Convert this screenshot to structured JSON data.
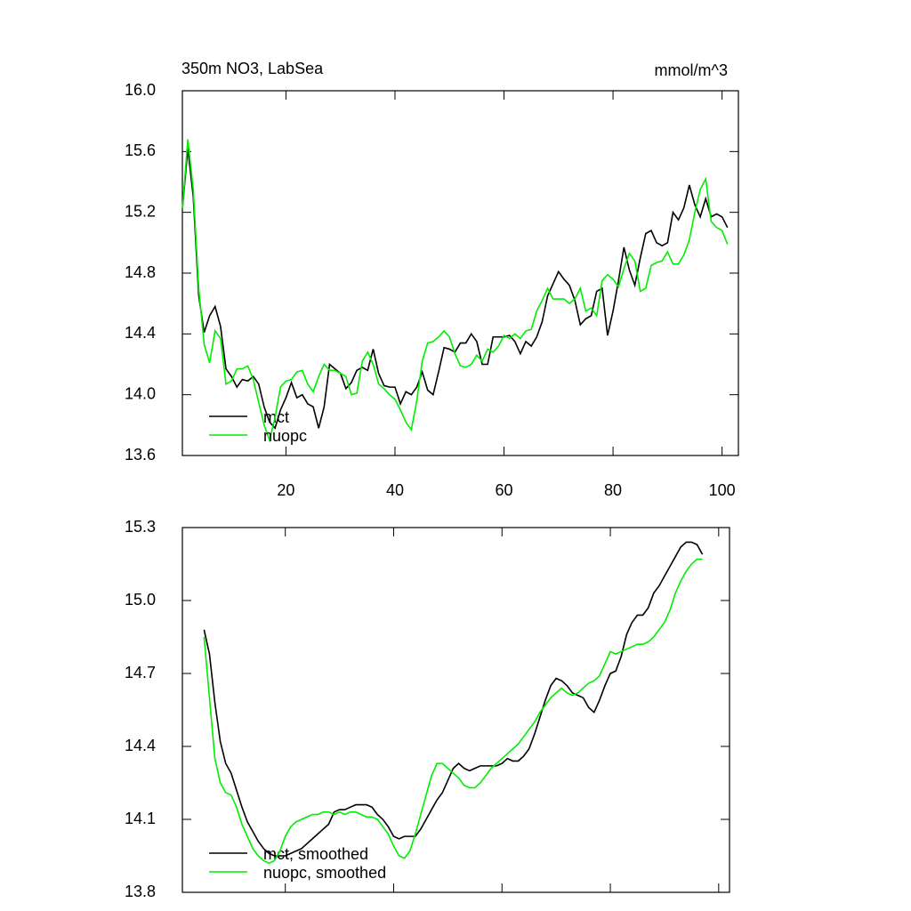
{
  "chart_data": [
    {
      "type": "line",
      "title": "350m NO3, LabSea",
      "units_label": "mmol/m^3",
      "x": [
        1,
        2,
        3,
        4,
        5,
        6,
        7,
        8,
        9,
        10,
        11,
        12,
        13,
        14,
        15,
        16,
        17,
        18,
        19,
        20,
        21,
        22,
        23,
        24,
        25,
        26,
        27,
        28,
        29,
        30,
        31,
        32,
        33,
        34,
        35,
        36,
        37,
        38,
        39,
        40,
        41,
        42,
        43,
        44,
        45,
        46,
        47,
        48,
        49,
        50,
        51,
        52,
        53,
        54,
        55,
        56,
        57,
        58,
        59,
        60,
        61,
        62,
        63,
        64,
        65,
        66,
        67,
        68,
        69,
        70,
        71,
        72,
        73,
        74,
        75,
        76,
        77,
        78,
        79,
        80,
        81,
        82,
        83,
        84,
        85,
        86,
        87,
        88,
        89,
        90,
        91,
        92,
        93,
        94,
        95,
        96,
        97,
        98,
        99,
        100,
        101
      ],
      "series": [
        {
          "name": "mct",
          "color": "#000000",
          "values": [
            15.22,
            15.62,
            15.3,
            14.65,
            14.41,
            14.52,
            14.58,
            14.45,
            14.17,
            14.12,
            14.05,
            14.1,
            14.09,
            14.12,
            14.07,
            13.92,
            13.82,
            13.78,
            13.9,
            13.98,
            14.08,
            13.98,
            14.0,
            13.94,
            13.92,
            13.78,
            13.92,
            14.2,
            14.17,
            14.14,
            14.04,
            14.08,
            14.16,
            14.18,
            14.16,
            14.3,
            14.14,
            14.06,
            14.05,
            14.05,
            13.94,
            14.02,
            14.0,
            14.05,
            14.15,
            14.03,
            14.0,
            14.15,
            14.31,
            14.3,
            14.28,
            14.34,
            14.34,
            14.4,
            14.35,
            14.2,
            14.2,
            14.38,
            14.38,
            14.38,
            14.39,
            14.35,
            14.27,
            14.35,
            14.32,
            14.38,
            14.48,
            14.65,
            14.73,
            14.81,
            14.76,
            14.72,
            14.62,
            14.46,
            14.5,
            14.52,
            14.68,
            14.7,
            14.39,
            14.55,
            14.75,
            14.97,
            14.82,
            14.72,
            14.9,
            15.06,
            15.08,
            15.0,
            14.98,
            15.0,
            15.2,
            15.15,
            15.23,
            15.38,
            15.25,
            15.17,
            15.29,
            15.17,
            15.19,
            15.17,
            15.1
          ]
        },
        {
          "name": "nuopc",
          "color": "#00ee00",
          "values": [
            15.22,
            15.68,
            15.35,
            14.7,
            14.33,
            14.21,
            14.42,
            14.37,
            14.07,
            14.09,
            14.17,
            14.17,
            14.19,
            14.1,
            13.95,
            13.8,
            13.7,
            13.85,
            14.05,
            14.09,
            14.1,
            14.15,
            14.16,
            14.07,
            14.02,
            14.12,
            14.2,
            14.16,
            14.16,
            14.14,
            14.12,
            14.0,
            14.01,
            14.22,
            14.28,
            14.2,
            14.07,
            14.04,
            14.0,
            13.97,
            13.9,
            13.82,
            13.77,
            13.96,
            14.22,
            14.34,
            14.35,
            14.38,
            14.42,
            14.38,
            14.27,
            14.19,
            14.18,
            14.2,
            14.26,
            14.22,
            14.3,
            14.28,
            14.32,
            14.39,
            14.37,
            14.4,
            14.37,
            14.42,
            14.43,
            14.55,
            14.62,
            14.7,
            14.63,
            14.63,
            14.63,
            14.6,
            14.63,
            14.7,
            14.55,
            14.57,
            14.52,
            14.75,
            14.79,
            14.76,
            14.71,
            14.83,
            14.93,
            14.88,
            14.68,
            14.7,
            14.85,
            14.87,
            14.88,
            14.94,
            14.86,
            14.86,
            14.92,
            15.02,
            15.2,
            15.35,
            15.42,
            15.14,
            15.1,
            15.08,
            14.99
          ]
        }
      ],
      "xlim": [
        1,
        103
      ],
      "xticks": [
        20,
        40,
        60,
        80,
        100
      ],
      "show_xtick_labels": true,
      "ylim": [
        13.6,
        16.0
      ],
      "yticks": [
        13.6,
        {
          "value": 14,
          "label": "14.0"
        },
        14.4,
        14.8,
        15.2,
        15.6,
        {
          "value": 16,
          "label": "16.0"
        }
      ],
      "legend": "lower left"
    },
    {
      "type": "line",
      "x": [
        5,
        6,
        7,
        8,
        9,
        10,
        11,
        12,
        13,
        14,
        15,
        16,
        17,
        18,
        19,
        20,
        21,
        22,
        23,
        24,
        25,
        26,
        27,
        28,
        29,
        30,
        31,
        32,
        33,
        34,
        35,
        36,
        37,
        38,
        39,
        40,
        41,
        42,
        43,
        44,
        45,
        46,
        47,
        48,
        49,
        50,
        51,
        52,
        53,
        54,
        55,
        56,
        57,
        58,
        59,
        60,
        61,
        62,
        63,
        64,
        65,
        66,
        67,
        68,
        69,
        70,
        71,
        72,
        73,
        74,
        75,
        76,
        77,
        78,
        79,
        80,
        81,
        82,
        83,
        84,
        85,
        86,
        87,
        88,
        89,
        90,
        91,
        92,
        93,
        94,
        95,
        96,
        97
      ],
      "series": [
        {
          "name": "mct, smoothed",
          "color": "#000000",
          "values": [
            14.88,
            14.78,
            14.58,
            14.42,
            14.33,
            14.29,
            14.22,
            14.15,
            14.09,
            14.05,
            14.01,
            13.98,
            13.96,
            13.95,
            13.95,
            13.95,
            13.96,
            13.97,
            13.98,
            14.0,
            14.02,
            14.04,
            14.06,
            14.08,
            14.13,
            14.14,
            14.14,
            14.15,
            14.16,
            14.16,
            14.16,
            14.15,
            14.12,
            14.1,
            14.07,
            14.03,
            14.02,
            14.03,
            14.03,
            14.03,
            14.06,
            14.1,
            14.14,
            14.18,
            14.21,
            14.26,
            14.31,
            14.33,
            14.31,
            14.3,
            14.31,
            14.32,
            14.32,
            14.32,
            14.32,
            14.33,
            14.35,
            14.34,
            14.34,
            14.36,
            14.39,
            14.45,
            14.52,
            14.59,
            14.65,
            14.68,
            14.67,
            14.65,
            14.62,
            14.61,
            14.6,
            14.56,
            14.54,
            14.59,
            14.65,
            14.7,
            14.71,
            14.77,
            14.86,
            14.91,
            14.94,
            14.94,
            14.97,
            15.03,
            15.06,
            15.1,
            15.14,
            15.18,
            15.22,
            15.24,
            15.24,
            15.23,
            15.19
          ]
        },
        {
          "name": "nuopc, smoothed",
          "color": "#00ee00",
          "values": [
            14.85,
            14.6,
            14.35,
            14.25,
            14.21,
            14.2,
            14.15,
            14.08,
            14.03,
            13.98,
            13.95,
            13.93,
            13.92,
            13.93,
            13.97,
            14.03,
            14.07,
            14.09,
            14.1,
            14.11,
            14.12,
            14.12,
            14.13,
            14.13,
            14.12,
            14.13,
            14.12,
            14.13,
            14.13,
            14.12,
            14.11,
            14.11,
            14.1,
            14.07,
            14.04,
            13.99,
            13.95,
            13.94,
            13.97,
            14.04,
            14.12,
            14.2,
            14.28,
            14.33,
            14.33,
            14.31,
            14.29,
            14.27,
            14.24,
            14.23,
            14.23,
            14.25,
            14.28,
            14.31,
            14.33,
            14.35,
            14.37,
            14.39,
            14.41,
            14.44,
            14.47,
            14.5,
            14.54,
            14.57,
            14.6,
            14.62,
            14.64,
            14.62,
            14.61,
            14.62,
            14.64,
            14.66,
            14.67,
            14.69,
            14.74,
            14.79,
            14.78,
            14.79,
            14.8,
            14.81,
            14.82,
            14.82,
            14.83,
            14.85,
            14.88,
            14.91,
            14.96,
            15.03,
            15.08,
            15.12,
            15.15,
            15.17,
            15.17
          ]
        }
      ],
      "xlim": [
        1,
        102
      ],
      "xticks": [
        20,
        40,
        60,
        80,
        100
      ],
      "show_xtick_labels": false,
      "ylim": [
        13.8,
        15.3
      ],
      "yticks": [
        13.8,
        14.1,
        14.4,
        14.7,
        {
          "value": 15,
          "label": "15.0"
        },
        15.3
      ],
      "legend": "lower left"
    }
  ]
}
